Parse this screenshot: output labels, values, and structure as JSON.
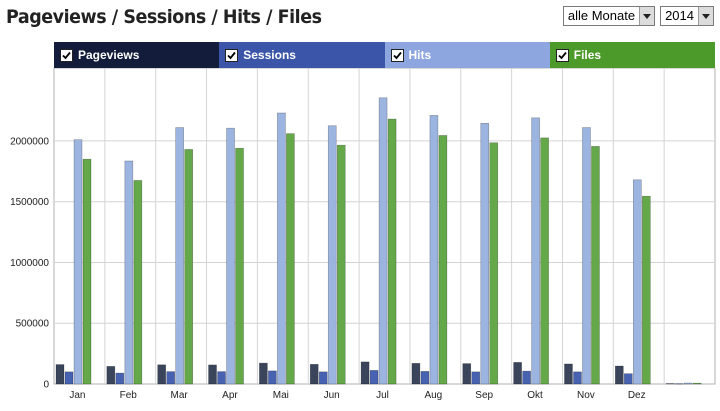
{
  "header": {
    "title": "Pageviews / Sessions / Hits / Files"
  },
  "controls": {
    "month_select": {
      "value": "alle Monate"
    },
    "year_select": {
      "value": "2014"
    }
  },
  "colors": {
    "pageviews": "#3a455c",
    "sessions": "#4662b0",
    "hits": "#9cb4e0",
    "files": "#64a84a",
    "legend_pageviews": "#131c3a",
    "legend_sessions": "#3b56a8",
    "legend_hits": "#8ea6df",
    "legend_files": "#4c9a2a"
  },
  "chart_data": {
    "type": "bar",
    "title": "Pageviews / Sessions / Hits / Files",
    "categories": [
      "Jan",
      "Feb",
      "Mar",
      "Apr",
      "Mai",
      "Jun",
      "Jul",
      "Aug",
      "Sep",
      "Okt",
      "Nov",
      "Dez",
      ""
    ],
    "series": [
      {
        "name": "Pageviews",
        "checked": true,
        "values": [
          160000,
          145000,
          158000,
          157000,
          172000,
          162000,
          182000,
          170000,
          168000,
          178000,
          165000,
          148000,
          4000
        ]
      },
      {
        "name": "Sessions",
        "checked": true,
        "values": [
          100000,
          90000,
          102000,
          102000,
          108000,
          100000,
          112000,
          104000,
          100000,
          106000,
          100000,
          85000,
          3000
        ]
      },
      {
        "name": "Hits",
        "checked": true,
        "values": [
          2010000,
          1835000,
          2110000,
          2105000,
          2230000,
          2125000,
          2355000,
          2210000,
          2145000,
          2190000,
          2110000,
          1680000,
          8000
        ]
      },
      {
        "name": "Files",
        "checked": true,
        "values": [
          1850000,
          1675000,
          1930000,
          1940000,
          2060000,
          1965000,
          2180000,
          2045000,
          1985000,
          2025000,
          1955000,
          1545000,
          7000
        ]
      }
    ],
    "yticks": [
      "0",
      "500000",
      "1000000",
      "1500000",
      "2000000"
    ],
    "ylim": [
      0,
      2600000
    ],
    "grid": true
  }
}
